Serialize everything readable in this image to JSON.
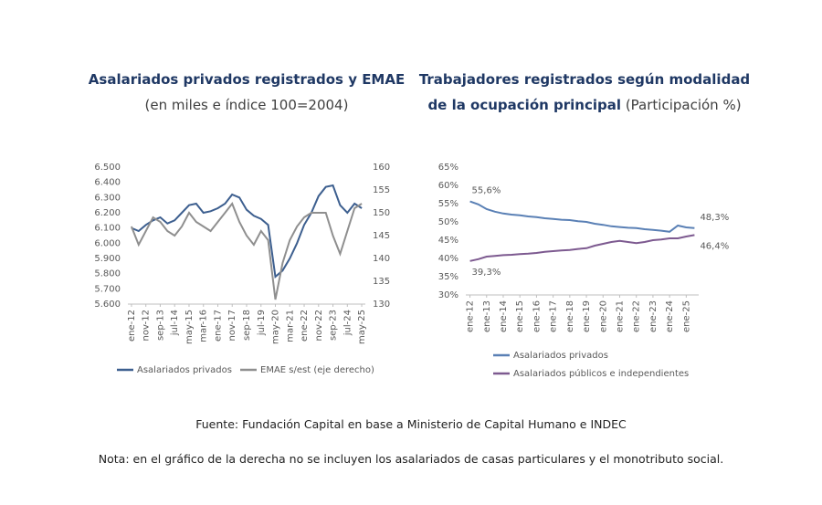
{
  "chart_data": [
    {
      "type": "line",
      "title": "Asalariados privados registrados y EMAE",
      "subtitle": "(en miles e índice 100=2004)",
      "categories": [
        "ene-12",
        null,
        "nov-12",
        null,
        "sep-13",
        null,
        "jul-14",
        null,
        "may-15",
        null,
        "mar-16",
        null,
        "ene-17",
        null,
        "nov-17",
        null,
        "sep-18",
        null,
        "jul-19",
        null,
        "may-20",
        null,
        "mar-21",
        null,
        "ene-22",
        null,
        "nov-22",
        null,
        "sep-23",
        null,
        "jul-24",
        null,
        "may-25"
      ],
      "series": [
        {
          "name": "Asalariados privados",
          "color": "#3d5f8f",
          "axis": "y",
          "values": [
            6100,
            6080,
            6120,
            6150,
            6170,
            6130,
            6150,
            6200,
            6250,
            6260,
            6200,
            6210,
            6230,
            6260,
            6320,
            6300,
            6220,
            6180,
            6160,
            6120,
            5780,
            5820,
            5900,
            6000,
            6120,
            6200,
            6310,
            6370,
            6380,
            6250,
            6200,
            6260,
            6230
          ]
        },
        {
          "name": "EMAE s/est (eje derecho)",
          "color": "#8f8f8f",
          "axis": "y2",
          "values": [
            147,
            143,
            146,
            149,
            148,
            146,
            145,
            147,
            150,
            148,
            147,
            146,
            148,
            150,
            152,
            148,
            145,
            143,
            146,
            144,
            131,
            139,
            144,
            147,
            149,
            150,
            150,
            150,
            145,
            141,
            146,
            151,
            152
          ]
        }
      ],
      "ylim": [
        5600,
        6500
      ],
      "yticks": [
        {
          "value": 5600,
          "label": "5.600"
        },
        {
          "value": 5700,
          "label": "5.700"
        },
        {
          "value": 5800,
          "label": "5.800"
        },
        {
          "value": 5900,
          "label": "5.900"
        },
        {
          "value": 6000,
          "label": "6.000"
        },
        {
          "value": 6100,
          "label": "6.100"
        },
        {
          "value": 6200,
          "label": "6.200"
        },
        {
          "value": 6300,
          "label": "6.300"
        },
        {
          "value": 6400,
          "label": "6.400"
        },
        {
          "value": 6500,
          "label": "6.500"
        }
      ],
      "y2lim": [
        130,
        160
      ],
      "y2ticks": [
        130,
        135,
        140,
        145,
        150,
        155,
        160
      ],
      "grid": false,
      "legend": "bottom"
    },
    {
      "type": "line",
      "title": "Trabajadores registrados según modalidad de la ocupación principal",
      "subtitle": "(Participación %)",
      "categories": [
        "ene-12",
        null,
        "ene-13",
        null,
        "ene-14",
        null,
        "ene-15",
        null,
        "ene-16",
        null,
        "ene-17",
        null,
        "ene-18",
        null,
        "ene-19",
        null,
        "ene-20",
        null,
        "ene-21",
        null,
        "ene-22",
        null,
        "ene-23",
        null,
        "ene-24",
        null,
        "ene-25",
        null
      ],
      "series": [
        {
          "name": "Asalariados privados",
          "color": "#5a80b5",
          "values": [
            55.6,
            54.8,
            53.5,
            52.8,
            52.3,
            52.0,
            51.8,
            51.5,
            51.3,
            51.0,
            50.8,
            50.6,
            50.5,
            50.2,
            50.0,
            49.5,
            49.2,
            48.8,
            48.6,
            48.4,
            48.3,
            48.0,
            47.8,
            47.6,
            47.3,
            49.0,
            48.5,
            48.3
          ],
          "value_labels": [
            "55,6%",
            null,
            null,
            null,
            null,
            null,
            null,
            null,
            null,
            null,
            null,
            null,
            null,
            null,
            null,
            null,
            null,
            null,
            null,
            null,
            null,
            null,
            null,
            null,
            null,
            null,
            null,
            "48,3%"
          ]
        },
        {
          "name": "Asalariados públicos e independientes",
          "color": "#7d5a90",
          "values": [
            39.3,
            39.8,
            40.5,
            40.7,
            40.9,
            41.0,
            41.2,
            41.3,
            41.5,
            41.8,
            42.0,
            42.2,
            42.3,
            42.6,
            42.8,
            43.5,
            44.0,
            44.5,
            44.8,
            44.5,
            44.2,
            44.5,
            45.0,
            45.2,
            45.5,
            45.5,
            46.0,
            46.4
          ],
          "value_labels": [
            "39,3%",
            null,
            null,
            null,
            null,
            null,
            null,
            null,
            null,
            null,
            null,
            null,
            null,
            null,
            null,
            null,
            null,
            null,
            null,
            null,
            null,
            null,
            null,
            null,
            null,
            null,
            null,
            "46,4%"
          ]
        }
      ],
      "ylim": [
        30,
        65
      ],
      "yticks": [
        {
          "value": 30,
          "label": "30%"
        },
        {
          "value": 35,
          "label": "35%"
        },
        {
          "value": 40,
          "label": "40%"
        },
        {
          "value": 45,
          "label": "45%"
        },
        {
          "value": 50,
          "label": "50%"
        },
        {
          "value": 55,
          "label": "55%"
        },
        {
          "value": 60,
          "label": "60%"
        },
        {
          "value": 65,
          "label": "65%"
        }
      ],
      "grid": false,
      "legend": "bottom"
    }
  ],
  "source": "Fuente: Fundación Capital en base a Ministerio de Capital Humano e INDEC",
  "note": "Nota: en el gráfico de la derecha no se incluyen los asalariados de casas particulares y el monotributo social."
}
